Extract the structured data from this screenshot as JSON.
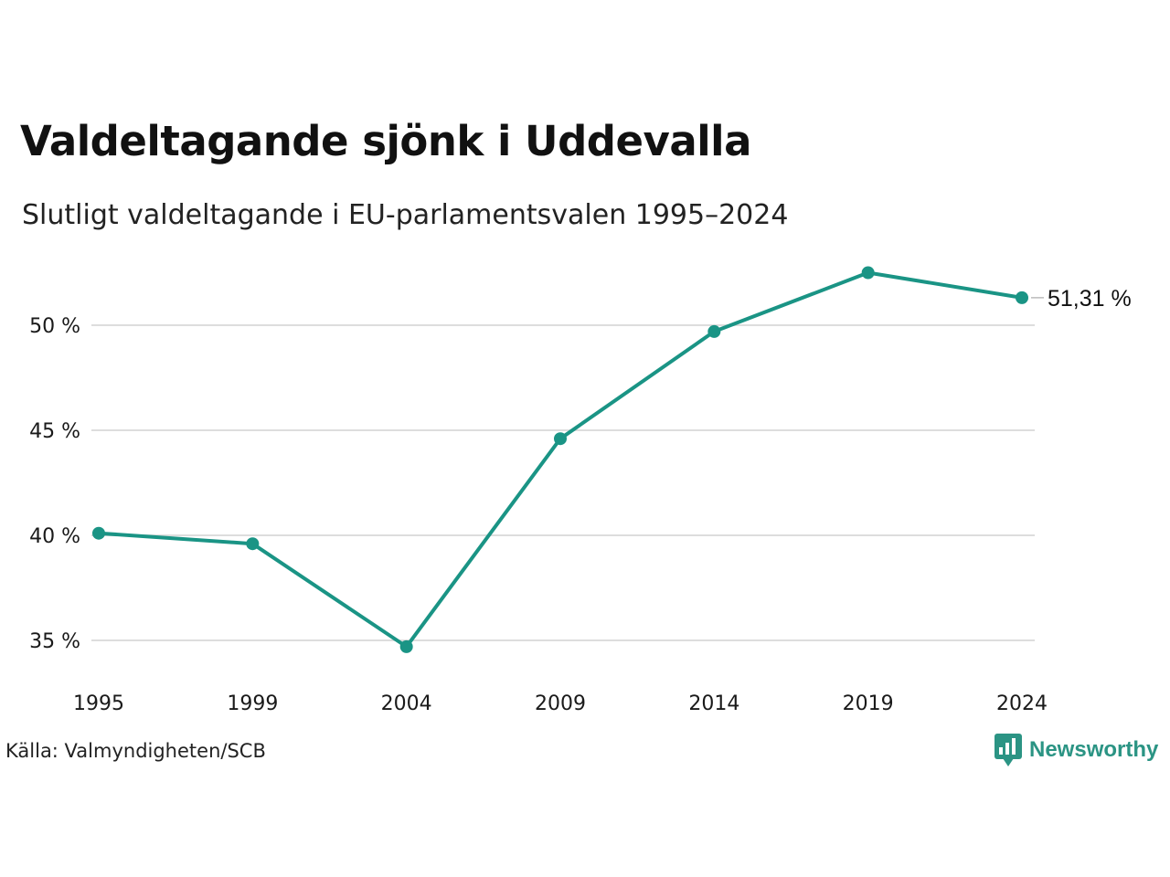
{
  "header": {
    "title": "Valdeltagande sjönk i Uddevalla",
    "subtitle": "Slutligt valdeltagande i EU-parlamentsvalen 1995–2024"
  },
  "footer": {
    "source": "Källa: Valmyndigheten/SCB",
    "brand_name": "Newsworthy",
    "brand_icon": "newsworthy-logo-icon"
  },
  "colors": {
    "line": "#1a9485",
    "grid": "#dddddd",
    "brand": "#2b9484",
    "text": "#1a1a1a"
  },
  "chart_data": {
    "type": "line",
    "title": "Valdeltagande sjönk i Uddevalla",
    "subtitle": "Slutligt valdeltagande i EU-parlamentsvalen 1995–2024",
    "x": [
      "1995",
      "1999",
      "2004",
      "2009",
      "2014",
      "2019",
      "2024"
    ],
    "series": [
      {
        "values": [
          40.1,
          39.6,
          34.7,
          44.6,
          49.7,
          52.5,
          51.31
        ]
      }
    ],
    "end_label": "51,31 %",
    "yticks": [
      35,
      40,
      45,
      50
    ],
    "ytick_labels": [
      "35 %",
      "40 %",
      "45 %",
      "50 %"
    ],
    "ylim": [
      33,
      54
    ],
    "grid": true,
    "legend": "none"
  }
}
